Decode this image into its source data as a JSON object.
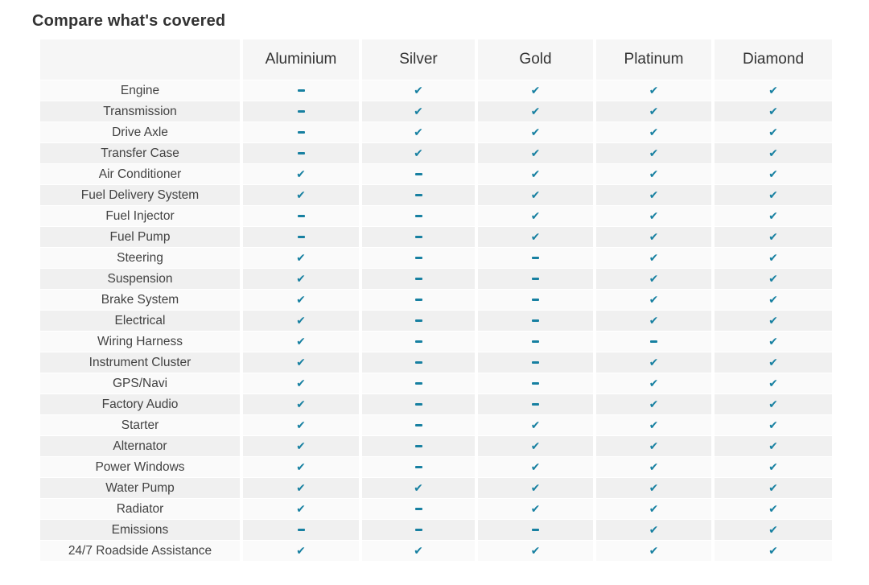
{
  "page_title": "Compare what's covered",
  "colors": {
    "accent": "#1780a1",
    "header_bg": "#f6f6f6",
    "row_light": "#fafafa",
    "row_dark": "#f0f0f0",
    "title_text": "#333333",
    "label_text": "#424242"
  },
  "icons": {
    "check": "✔"
  },
  "table": {
    "plan_columns": [
      "Aluminium",
      "Silver",
      "Gold",
      "Platinum",
      "Diamond"
    ],
    "rows": [
      {
        "label": "Engine",
        "coverage": [
          "dash",
          "check",
          "check",
          "check",
          "check"
        ]
      },
      {
        "label": "Transmission",
        "coverage": [
          "dash",
          "check",
          "check",
          "check",
          "check"
        ]
      },
      {
        "label": "Drive Axle",
        "coverage": [
          "dash",
          "check",
          "check",
          "check",
          "check"
        ]
      },
      {
        "label": "Transfer Case",
        "coverage": [
          "dash",
          "check",
          "check",
          "check",
          "check"
        ]
      },
      {
        "label": "Air Conditioner",
        "coverage": [
          "check",
          "dash",
          "check",
          "check",
          "check"
        ]
      },
      {
        "label": "Fuel Delivery System",
        "coverage": [
          "check",
          "dash",
          "check",
          "check",
          "check"
        ]
      },
      {
        "label": "Fuel Injector",
        "coverage": [
          "dash",
          "dash",
          "check",
          "check",
          "check"
        ]
      },
      {
        "label": "Fuel Pump",
        "coverage": [
          "dash",
          "dash",
          "check",
          "check",
          "check"
        ]
      },
      {
        "label": "Steering",
        "coverage": [
          "check",
          "dash",
          "dash",
          "check",
          "check"
        ]
      },
      {
        "label": "Suspension",
        "coverage": [
          "check",
          "dash",
          "dash",
          "check",
          "check"
        ]
      },
      {
        "label": "Brake System",
        "coverage": [
          "check",
          "dash",
          "dash",
          "check",
          "check"
        ]
      },
      {
        "label": "Electrical",
        "coverage": [
          "check",
          "dash",
          "dash",
          "check",
          "check"
        ]
      },
      {
        "label": "Wiring Harness",
        "coverage": [
          "check",
          "dash",
          "dash",
          "dash",
          "check"
        ]
      },
      {
        "label": "Instrument Cluster",
        "coverage": [
          "check",
          "dash",
          "dash",
          "check",
          "check"
        ]
      },
      {
        "label": "GPS/Navi",
        "coverage": [
          "check",
          "dash",
          "dash",
          "check",
          "check"
        ]
      },
      {
        "label": "Factory Audio",
        "coverage": [
          "check",
          "dash",
          "dash",
          "check",
          "check"
        ]
      },
      {
        "label": "Starter",
        "coverage": [
          "check",
          "dash",
          "check",
          "check",
          "check"
        ]
      },
      {
        "label": "Alternator",
        "coverage": [
          "check",
          "dash",
          "check",
          "check",
          "check"
        ]
      },
      {
        "label": "Power Windows",
        "coverage": [
          "check",
          "dash",
          "check",
          "check",
          "check"
        ]
      },
      {
        "label": "Water Pump",
        "coverage": [
          "check",
          "check",
          "check",
          "check",
          "check"
        ]
      },
      {
        "label": "Radiator",
        "coverage": [
          "check",
          "dash",
          "check",
          "check",
          "check"
        ]
      },
      {
        "label": "Emissions",
        "coverage": [
          "dash",
          "dash",
          "dash",
          "check",
          "check"
        ]
      },
      {
        "label": "24/7 Roadside Assistance",
        "coverage": [
          "check",
          "check",
          "check",
          "check",
          "check"
        ]
      }
    ]
  }
}
